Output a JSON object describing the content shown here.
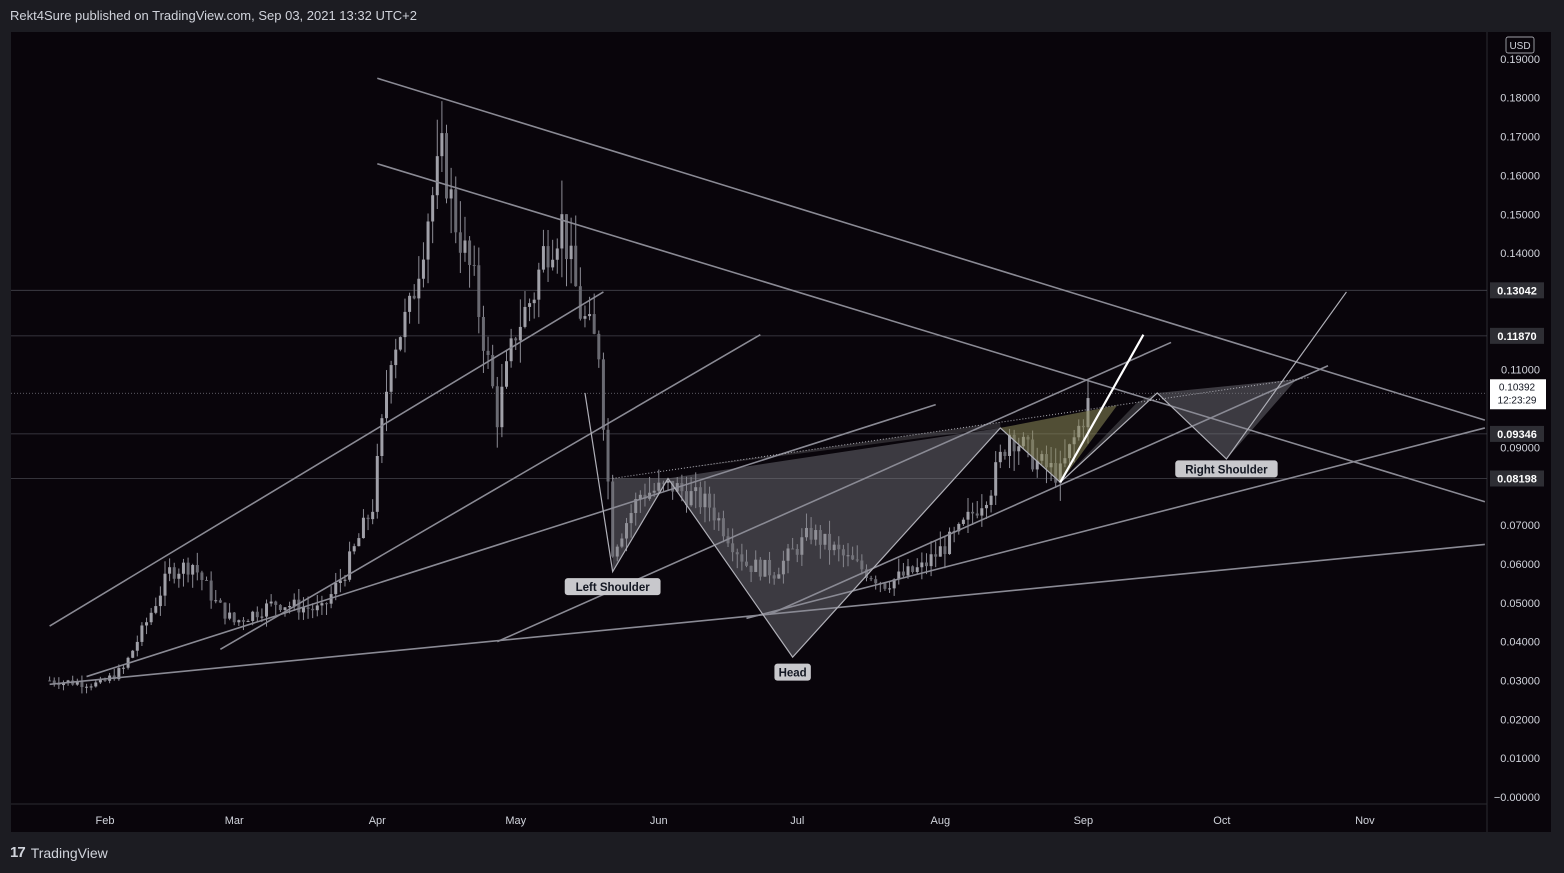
{
  "header": {
    "published_by": "Rekt4Sure published on TradingView.com, Sep 03, 2021 13:32 UTC+2"
  },
  "footer": {
    "logo_text": "TradingView",
    "logo_icon": "tradingview-logo-icon"
  },
  "colors": {
    "background": "#09050b",
    "frame": "#1c1c22",
    "axis_text": "#d1d4dc",
    "candle": "#8d8d96",
    "line": "#8a8a94",
    "pattern_fill": "#7d7d82",
    "highlight": "#8c8a5a"
  },
  "chart_data": {
    "type": "line",
    "currency": "USD",
    "x_ticks": [
      "Feb",
      "Mar",
      "Apr",
      "May",
      "Jun",
      "Jul",
      "Aug",
      "Sep",
      "Oct",
      "Nov"
    ],
    "y_ticks": [
      "0.19000",
      "0.18000",
      "0.17000",
      "0.16000",
      "0.15000",
      "0.14000",
      "0.11000",
      "0.09000",
      "0.07000",
      "0.06000",
      "0.05000",
      "0.04000",
      "0.03000",
      "0.02000",
      "0.01000",
      "−0.00000"
    ],
    "y_range": [
      0,
      0.195
    ],
    "price_levels": [
      {
        "label": "0.13042",
        "value": 0.13042
      },
      {
        "label": "0.11870",
        "value": 0.1187
      },
      {
        "label": "0.09346",
        "value": 0.09346
      },
      {
        "label": "0.08198",
        "value": 0.08198
      }
    ],
    "last_price": {
      "label": "0.10392",
      "countdown": "12:23:29",
      "value": 0.10392
    },
    "annotations": [
      {
        "text": "Left Shoulder",
        "date": "2021-05-22",
        "value": 0.0535
      },
      {
        "text": "Head",
        "date": "2021-06-30",
        "value": 0.0315
      },
      {
        "text": "Right Shoulder",
        "date": "2021-10-02",
        "value": 0.0838
      }
    ],
    "price_series": {
      "dates": [
        "2021-01-20",
        "2021-01-31",
        "2021-02-05",
        "2021-02-10",
        "2021-02-15",
        "2021-02-20",
        "2021-02-25",
        "2021-03-01",
        "2021-03-10",
        "2021-03-20",
        "2021-03-25",
        "2021-03-31",
        "2021-04-04",
        "2021-04-08",
        "2021-04-12",
        "2021-04-15",
        "2021-04-18",
        "2021-04-22",
        "2021-04-27",
        "2021-05-01",
        "2021-05-05",
        "2021-05-07",
        "2021-05-11",
        "2021-05-15",
        "2021-05-19",
        "2021-05-22",
        "2021-05-28",
        "2021-06-04",
        "2021-06-12",
        "2021-06-20",
        "2021-06-26",
        "2021-07-04",
        "2021-07-12",
        "2021-07-20",
        "2021-07-28",
        "2021-08-05",
        "2021-08-12",
        "2021-08-16",
        "2021-08-22",
        "2021-08-27",
        "2021-09-03"
      ],
      "values": [
        0.03,
        0.029,
        0.033,
        0.045,
        0.058,
        0.06,
        0.05,
        0.045,
        0.05,
        0.048,
        0.058,
        0.075,
        0.115,
        0.125,
        0.15,
        0.165,
        0.148,
        0.132,
        0.098,
        0.12,
        0.13,
        0.14,
        0.148,
        0.125,
        0.115,
        0.064,
        0.078,
        0.08,
        0.075,
        0.06,
        0.058,
        0.068,
        0.061,
        0.055,
        0.059,
        0.068,
        0.08,
        0.094,
        0.086,
        0.083,
        0.104
      ]
    },
    "trend_lines": [
      {
        "from": [
          "2021-04-01",
          0.185
        ],
        "to": [
          "2021-11-27",
          0.097
        ]
      },
      {
        "from": [
          "2021-04-01",
          0.163
        ],
        "to": [
          "2021-11-27",
          0.076
        ]
      },
      {
        "from": [
          "2021-01-20",
          0.044
        ],
        "to": [
          "2021-05-20",
          0.13
        ]
      },
      {
        "from": [
          "2021-02-26",
          0.038
        ],
        "to": [
          "2021-06-23",
          0.119
        ]
      },
      {
        "from": [
          "2021-01-28",
          0.031
        ],
        "to": [
          "2021-07-31",
          0.101
        ]
      },
      {
        "from": [
          "2021-04-27",
          0.04
        ],
        "to": [
          "2021-09-20",
          0.117
        ]
      },
      {
        "from": [
          "2021-06-25",
          0.047
        ],
        "to": [
          "2021-10-24",
          0.111
        ]
      },
      {
        "from": [
          "2021-01-20",
          0.029
        ],
        "to": [
          "2021-11-27",
          0.065
        ]
      },
      {
        "from": [
          "2021-06-20",
          0.046
        ],
        "to": [
          "2021-11-27",
          0.095
        ]
      }
    ],
    "projection_path": [
      [
        "2021-08-27",
        0.081
      ],
      [
        "2021-09-14",
        0.119
      ]
    ],
    "pattern_path": [
      [
        "2021-05-16",
        0.104
      ],
      [
        "2021-05-22",
        0.058
      ],
      [
        "2021-06-03",
        0.082
      ],
      [
        "2021-06-30",
        0.036
      ],
      [
        "2021-08-14",
        0.095
      ],
      [
        "2021-08-27",
        0.081
      ],
      [
        "2021-09-17",
        0.104
      ],
      [
        "2021-10-02",
        0.087
      ],
      [
        "2021-10-28",
        0.13
      ]
    ]
  }
}
